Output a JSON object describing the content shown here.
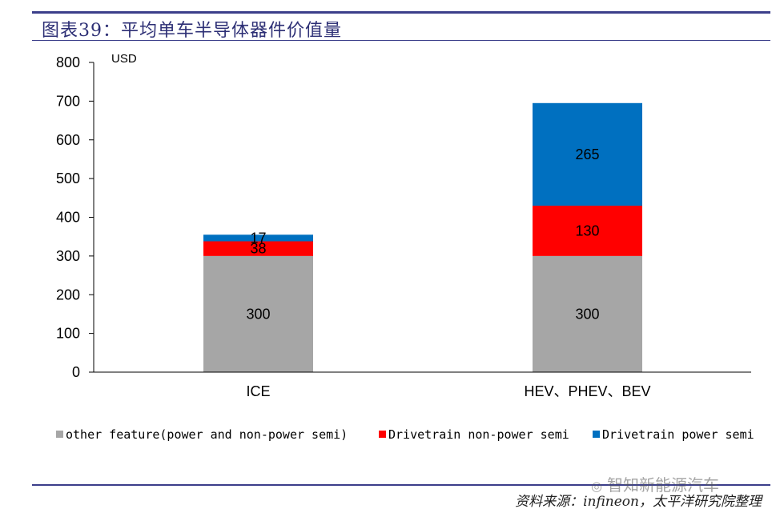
{
  "header": {
    "title": "图表39：平均单车半导体器件价值量"
  },
  "chart_data": {
    "type": "bar",
    "stacked": true,
    "categories": [
      "ICE",
      "HEV、PHEV、BEV"
    ],
    "series": [
      {
        "name": "other feature(power and non-power semi)",
        "values": [
          300,
          300
        ],
        "color": "#a6a6a6"
      },
      {
        "name": "Drivetrain non-power semi",
        "values": [
          38,
          130
        ],
        "color": "#ff0000"
      },
      {
        "name": "Drivetrain power semi",
        "values": [
          17,
          265
        ],
        "color": "#0070c0"
      }
    ],
    "data_labels": [
      [
        "300",
        "38",
        "17"
      ],
      [
        "300",
        "130",
        "265"
      ]
    ],
    "ylabel": "USD",
    "ylim": [
      0,
      800
    ],
    "yticks": [
      "0",
      "100",
      "200",
      "300",
      "400",
      "500",
      "600",
      "700",
      "800"
    ],
    "grid": false,
    "legend_position": "bottom"
  },
  "legend": {
    "items": [
      {
        "label": "other feature(power and non-power semi)",
        "color": "#a6a6a6"
      },
      {
        "label": "Drivetrain non-power semi",
        "color": "#ff0000"
      },
      {
        "label": "Drivetrain power semi",
        "color": "#0070c0"
      }
    ]
  },
  "footer": {
    "source": "资料来源：infineon，太平洋研究院整理"
  },
  "watermark": {
    "text": "智知新能源汽车",
    "icon": "wechat-icon"
  }
}
